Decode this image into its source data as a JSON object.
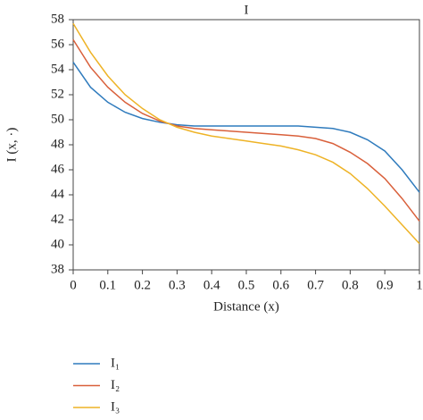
{
  "chart_data": {
    "type": "line",
    "title": "I",
    "x_label": "Distance (x)",
    "y_label": "I (x, ·)",
    "x": [
      0,
      0.05,
      0.1,
      0.15,
      0.2,
      0.25,
      0.3,
      0.35,
      0.4,
      0.45,
      0.5,
      0.55,
      0.6,
      0.65,
      0.7,
      0.75,
      0.8,
      0.85,
      0.9,
      0.95,
      1
    ],
    "series": [
      {
        "name": "I₁",
        "color": "#2f7bbd",
        "values": [
          54.6,
          52.6,
          51.4,
          50.6,
          50.1,
          49.8,
          49.6,
          49.5,
          49.5,
          49.5,
          49.5,
          49.5,
          49.5,
          49.5,
          49.4,
          49.3,
          49.0,
          48.4,
          47.5,
          46.0,
          44.2
        ]
      },
      {
        "name": "I₂",
        "color": "#d9603b",
        "values": [
          56.4,
          54.2,
          52.6,
          51.4,
          50.5,
          49.9,
          49.5,
          49.3,
          49.2,
          49.1,
          49.0,
          48.9,
          48.8,
          48.7,
          48.5,
          48.1,
          47.4,
          46.5,
          45.3,
          43.7,
          41.9
        ]
      },
      {
        "name": "I₃",
        "color": "#eeb326",
        "values": [
          57.7,
          55.4,
          53.5,
          52.0,
          50.9,
          50.0,
          49.4,
          49.0,
          48.7,
          48.5,
          48.3,
          48.1,
          47.9,
          47.6,
          47.2,
          46.6,
          45.7,
          44.5,
          43.1,
          41.6,
          40.1
        ]
      }
    ],
    "xlim": [
      0,
      1
    ],
    "xticks": [
      0,
      0.1,
      0.2,
      0.3,
      0.4,
      0.5,
      0.6,
      0.7,
      0.8,
      0.9,
      1
    ],
    "ylim": [
      38,
      58
    ],
    "yticks": [
      38,
      40,
      42,
      44,
      46,
      48,
      50,
      52,
      54,
      56,
      58
    ],
    "grid": false,
    "legend": "bottom-left"
  }
}
